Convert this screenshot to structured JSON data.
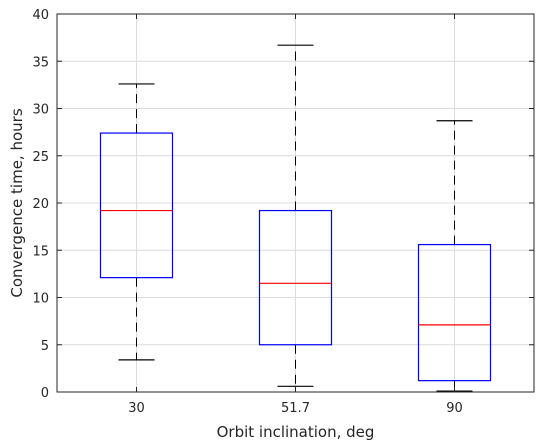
{
  "chart_data": {
    "type": "boxplot",
    "title": "",
    "xlabel": "Orbit inclination, deg",
    "ylabel": "Convergence time, hours",
    "ylim": [
      0,
      40
    ],
    "yticks": [
      "0",
      "5",
      "10",
      "15",
      "20",
      "25",
      "30",
      "35",
      "40"
    ],
    "grid": true,
    "categories": [
      "30",
      "51.7",
      "90"
    ],
    "boxes": [
      {
        "whisker_low": 3.4,
        "q1": 12.1,
        "median": 19.2,
        "q3": 27.4,
        "whisker_high": 32.6
      },
      {
        "whisker_low": 0.6,
        "q1": 5.0,
        "median": 11.5,
        "q3": 19.2,
        "whisker_high": 36.7
      },
      {
        "whisker_low": 0.1,
        "q1": 1.2,
        "median": 7.1,
        "q3": 15.6,
        "whisker_high": 28.7
      }
    ],
    "colors": {
      "box": "#0000ff",
      "median": "#ff0000",
      "whisker": "#000000",
      "grid": "#dcdcdc",
      "axes": "#262626"
    }
  }
}
